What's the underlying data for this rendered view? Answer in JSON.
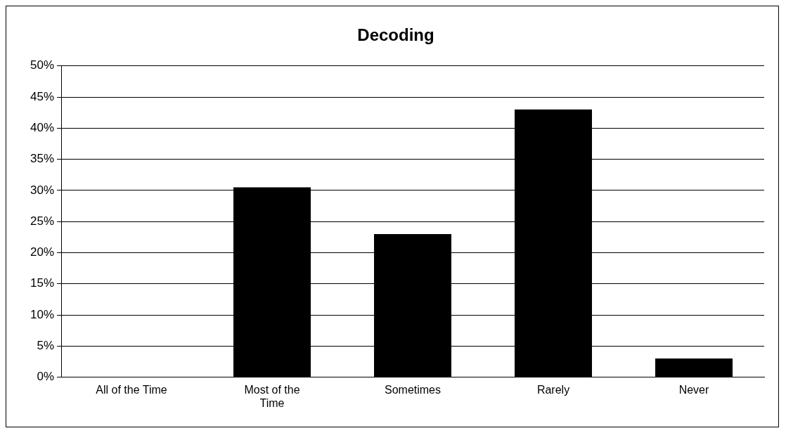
{
  "chart_data": {
    "type": "bar",
    "title": "Decoding",
    "categories": [
      "All of the Time",
      "Most of the Time",
      "Sometimes",
      "Rarely",
      "Never"
    ],
    "values": [
      0,
      30.5,
      23,
      43,
      3
    ],
    "color": "#000000",
    "ylim": [
      0,
      50
    ],
    "yticks": [
      {
        "value": 0,
        "label": "0%"
      },
      {
        "value": 5,
        "label": "5%"
      },
      {
        "value": 10,
        "label": "10%"
      },
      {
        "value": 15,
        "label": "15%"
      },
      {
        "value": 20,
        "label": "20%"
      },
      {
        "value": 25,
        "label": "25%"
      },
      {
        "value": 30,
        "label": "30%"
      },
      {
        "value": 35,
        "label": "35%"
      },
      {
        "value": 40,
        "label": "40%"
      },
      {
        "value": 45,
        "label": "45%"
      },
      {
        "value": 50,
        "label": "50%"
      }
    ],
    "grid": "y",
    "legend": false
  }
}
